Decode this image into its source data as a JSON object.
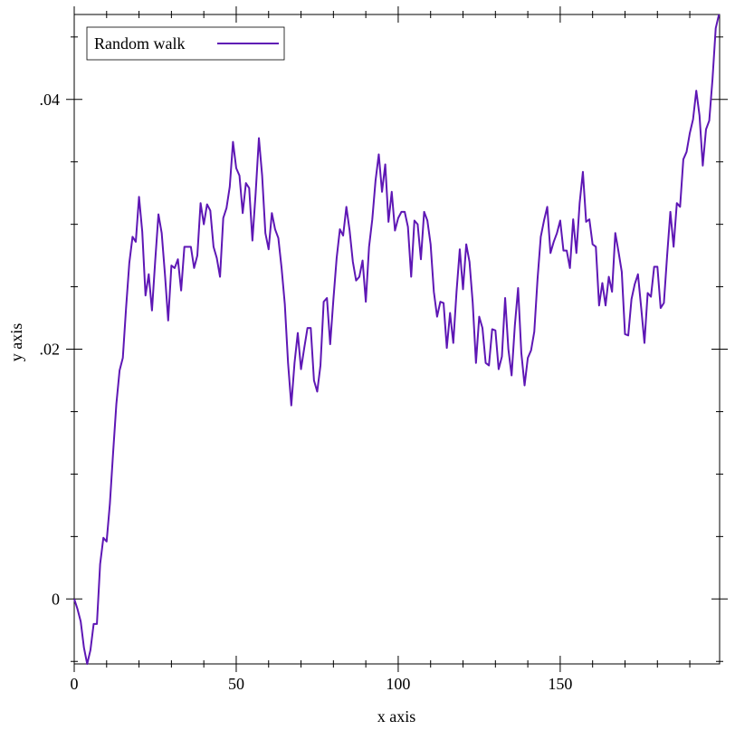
{
  "chart_data": {
    "type": "line",
    "xlabel": "x axis",
    "ylabel": "y axis",
    "x": [
      0,
      1,
      2,
      3,
      4,
      5,
      6,
      7,
      8,
      9,
      10,
      11,
      12,
      13,
      14,
      15,
      16,
      17,
      18,
      19,
      20,
      21,
      22,
      23,
      24,
      25,
      26,
      27,
      28,
      29,
      30,
      31,
      32,
      33,
      34,
      35,
      36,
      37,
      38,
      39,
      40,
      41,
      42,
      43,
      44,
      45,
      46,
      47,
      48,
      49,
      50,
      51,
      52,
      53,
      54,
      55,
      56,
      57,
      58,
      59,
      60,
      61,
      62,
      63,
      64,
      65,
      66,
      67,
      68,
      69,
      70,
      71,
      72,
      73,
      74,
      75,
      76,
      77,
      78,
      79,
      80,
      81,
      82,
      83,
      84,
      85,
      86,
      87,
      88,
      89,
      90,
      91,
      92,
      93,
      94,
      95,
      96,
      97,
      98,
      99,
      100,
      101,
      102,
      103,
      104,
      105,
      106,
      107,
      108,
      109,
      110,
      111,
      112,
      113,
      114,
      115,
      116,
      117,
      118,
      119,
      120,
      121,
      122,
      123,
      124,
      125,
      126,
      127,
      128,
      129,
      130,
      131,
      132,
      133,
      134,
      135,
      136,
      137,
      138,
      139,
      140,
      141,
      142,
      143,
      144,
      145,
      146,
      147,
      148,
      149,
      150,
      151,
      152,
      153,
      154,
      155,
      156,
      157,
      158,
      159,
      160,
      161,
      162,
      163,
      164,
      165,
      166,
      167,
      168,
      169,
      170,
      171,
      172,
      173,
      174,
      175,
      176,
      177,
      178,
      179,
      180,
      181,
      182,
      183,
      184,
      185,
      186,
      187,
      188,
      189,
      190,
      191,
      192,
      193,
      194,
      195,
      196,
      197,
      198,
      199
    ],
    "series": [
      {
        "name": "Random walk",
        "color": "#5e17b5",
        "values": [
          0,
          -0.0008,
          -0.0018,
          -0.0039,
          -0.0052,
          -0.0041,
          -0.002,
          -0.002,
          0.0028,
          0.0049,
          0.0046,
          0.0076,
          0.0117,
          0.0156,
          0.0183,
          0.0193,
          0.0233,
          0.0269,
          0.029,
          0.0286,
          0.0322,
          0.0294,
          0.0243,
          0.026,
          0.0231,
          0.0271,
          0.0308,
          0.0293,
          0.026,
          0.0223,
          0.0267,
          0.0265,
          0.0272,
          0.0247,
          0.0282,
          0.0282,
          0.0282,
          0.0265,
          0.0275,
          0.0317,
          0.03,
          0.0316,
          0.0311,
          0.0282,
          0.0273,
          0.0258,
          0.0305,
          0.0313,
          0.033,
          0.0366,
          0.0345,
          0.0339,
          0.0309,
          0.0333,
          0.0329,
          0.0287,
          0.0325,
          0.0369,
          0.0339,
          0.0293,
          0.028,
          0.0309,
          0.0296,
          0.0289,
          0.0265,
          0.0236,
          0.0189,
          0.0155,
          0.0189,
          0.0213,
          0.0184,
          0.0201,
          0.0217,
          0.0217,
          0.0175,
          0.0166,
          0.0187,
          0.0238,
          0.0241,
          0.0204,
          0.024,
          0.0273,
          0.0296,
          0.0291,
          0.0314,
          0.0295,
          0.027,
          0.0255,
          0.0258,
          0.0271,
          0.0238,
          0.0282,
          0.0304,
          0.0335,
          0.0356,
          0.0326,
          0.0348,
          0.0302,
          0.0326,
          0.0295,
          0.0305,
          0.031,
          0.031,
          0.0298,
          0.0258,
          0.0303,
          0.03,
          0.0272,
          0.031,
          0.0303,
          0.0284,
          0.0246,
          0.0226,
          0.0238,
          0.0237,
          0.0201,
          0.0229,
          0.0205,
          0.0246,
          0.028,
          0.0248,
          0.0284,
          0.027,
          0.0237,
          0.0189,
          0.0226,
          0.0217,
          0.0189,
          0.0187,
          0.0216,
          0.0215,
          0.0184,
          0.0194,
          0.0241,
          0.02,
          0.0179,
          0.0219,
          0.0249,
          0.0197,
          0.0171,
          0.0193,
          0.0199,
          0.0214,
          0.0256,
          0.029,
          0.0303,
          0.0314,
          0.0277,
          0.0286,
          0.0293,
          0.0303,
          0.0279,
          0.0279,
          0.0265,
          0.0304,
          0.0277,
          0.0317,
          0.0342,
          0.0302,
          0.0304,
          0.0284,
          0.0282,
          0.0235,
          0.0253,
          0.0235,
          0.0258,
          0.0246,
          0.0293,
          0.0278,
          0.0262,
          0.0212,
          0.0211,
          0.024,
          0.0252,
          0.026,
          0.0233,
          0.0205,
          0.0245,
          0.0242,
          0.0266,
          0.0266,
          0.0233,
          0.0237,
          0.0275,
          0.031,
          0.0282,
          0.0317,
          0.0314,
          0.0352,
          0.0358,
          0.0373,
          0.0384,
          0.0407,
          0.0387,
          0.0347,
          0.0376,
          0.0383,
          0.0416,
          0.0457,
          0.0468
        ]
      }
    ],
    "xlim": [
      0,
      199.2
    ],
    "ylim": [
      -0.0052,
      0.0468
    ],
    "xticks": [
      0,
      50,
      100,
      150
    ],
    "yticks": [
      {
        "value": 0,
        "label": "0"
      },
      {
        "value": 0.02,
        "label": ".02"
      },
      {
        "value": 0.04,
        "label": ".04"
      }
    ],
    "xminorticks": [
      10,
      20,
      30,
      40,
      60,
      70,
      80,
      90,
      110,
      120,
      130,
      140,
      160,
      170,
      180,
      190
    ],
    "yminorticks": [
      -0.005,
      0.005,
      0.01,
      0.015,
      0.025,
      0.03,
      0.035,
      0.045
    ],
    "legend": "top-left"
  }
}
